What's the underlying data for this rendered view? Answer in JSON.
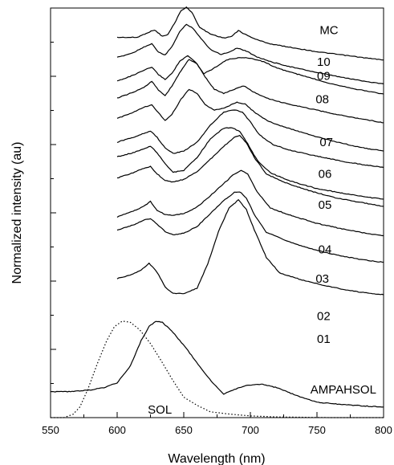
{
  "chart_data": {
    "type": "line",
    "title": "",
    "xlabel": "Wavelength (nm)",
    "ylabel": "Normalized intensity (au)",
    "xlim": [
      550,
      800
    ],
    "ylim": [
      0,
      12
    ],
    "xticks": [
      550,
      600,
      650,
      700,
      750,
      800
    ],
    "grid": false,
    "legend": "none",
    "series": [
      {
        "name": "MC",
        "style": "solid",
        "points": [
          [
            600,
            11.14
          ],
          [
            615,
            11.14
          ],
          [
            623,
            11.28
          ],
          [
            628,
            11.36
          ],
          [
            634,
            11.17
          ],
          [
            638,
            11.22
          ],
          [
            643,
            11.55
          ],
          [
            648,
            11.93
          ],
          [
            652,
            12.02
          ],
          [
            656,
            11.88
          ],
          [
            662,
            11.43
          ],
          [
            670,
            11.24
          ],
          [
            680,
            11.12
          ],
          [
            686,
            11.17
          ],
          [
            691,
            11.34
          ],
          [
            697,
            11.21
          ],
          [
            705,
            11.07
          ],
          [
            715,
            10.95
          ],
          [
            730,
            10.85
          ],
          [
            750,
            10.72
          ],
          [
            770,
            10.62
          ],
          [
            790,
            10.52
          ],
          [
            800,
            10.48
          ]
        ]
      },
      {
        "name": "10",
        "style": "solid",
        "points": [
          [
            600,
            10.55
          ],
          [
            612,
            10.69
          ],
          [
            620,
            10.86
          ],
          [
            626,
            10.95
          ],
          [
            631,
            10.71
          ],
          [
            636,
            10.62
          ],
          [
            641,
            10.86
          ],
          [
            647,
            11.31
          ],
          [
            652,
            11.52
          ],
          [
            657,
            11.41
          ],
          [
            663,
            11.1
          ],
          [
            670,
            10.79
          ],
          [
            678,
            10.64
          ],
          [
            684,
            10.71
          ],
          [
            690,
            10.83
          ],
          [
            697,
            10.74
          ],
          [
            705,
            10.57
          ],
          [
            715,
            10.43
          ],
          [
            730,
            10.28
          ],
          [
            750,
            10.11
          ],
          [
            770,
            9.96
          ],
          [
            790,
            9.83
          ],
          [
            800,
            9.78
          ]
        ]
      },
      {
        "name": "09",
        "style": "solid",
        "points": [
          [
            600,
            9.86
          ],
          [
            612,
            10.03
          ],
          [
            620,
            10.17
          ],
          [
            626,
            10.27
          ],
          [
            631,
            10.05
          ],
          [
            636,
            9.91
          ],
          [
            641,
            10.08
          ],
          [
            647,
            10.44
          ],
          [
            653,
            10.6
          ],
          [
            659,
            10.41
          ],
          [
            665,
            10.08
          ],
          [
            672,
            10.22
          ],
          [
            682,
            10.48
          ],
          [
            692,
            10.55
          ],
          [
            700,
            10.53
          ],
          [
            710,
            10.43
          ],
          [
            720,
            10.24
          ],
          [
            740,
            10.01
          ],
          [
            760,
            9.79
          ],
          [
            780,
            9.62
          ],
          [
            800,
            9.48
          ]
        ]
      },
      {
        "name": "08",
        "style": "solid",
        "points": [
          [
            600,
            9.36
          ],
          [
            612,
            9.53
          ],
          [
            620,
            9.67
          ],
          [
            626,
            9.86
          ],
          [
            631,
            9.6
          ],
          [
            636,
            9.43
          ],
          [
            641,
            9.71
          ],
          [
            648,
            10.17
          ],
          [
            654,
            10.5
          ],
          [
            660,
            10.36
          ],
          [
            666,
            9.98
          ],
          [
            673,
            9.62
          ],
          [
            680,
            9.5
          ],
          [
            688,
            9.62
          ],
          [
            695,
            9.72
          ],
          [
            702,
            9.55
          ],
          [
            712,
            9.36
          ],
          [
            725,
            9.22
          ],
          [
            745,
            9.05
          ],
          [
            765,
            8.88
          ],
          [
            785,
            8.74
          ],
          [
            800,
            8.64
          ]
        ]
      },
      {
        "name": "07",
        "style": "solid",
        "points": [
          [
            600,
            8.76
          ],
          [
            612,
            8.95
          ],
          [
            620,
            9.09
          ],
          [
            626,
            9.17
          ],
          [
            631,
            8.93
          ],
          [
            636,
            8.71
          ],
          [
            641,
            8.88
          ],
          [
            648,
            9.33
          ],
          [
            654,
            9.62
          ],
          [
            660,
            9.5
          ],
          [
            666,
            9.17
          ],
          [
            673,
            9
          ],
          [
            682,
            9.1
          ],
          [
            690,
            9.24
          ],
          [
            696,
            9.19
          ],
          [
            703,
            8.95
          ],
          [
            713,
            8.69
          ],
          [
            725,
            8.52
          ],
          [
            745,
            8.28
          ],
          [
            765,
            8.07
          ],
          [
            785,
            7.9
          ],
          [
            800,
            7.81
          ]
        ]
      },
      {
        "name": "06",
        "style": "solid",
        "points": [
          [
            600,
            8.07
          ],
          [
            612,
            8.21
          ],
          [
            620,
            8.33
          ],
          [
            625,
            8.4
          ],
          [
            630,
            8.21
          ],
          [
            636,
            7.9
          ],
          [
            642,
            7.74
          ],
          [
            650,
            7.81
          ],
          [
            660,
            8.07
          ],
          [
            670,
            8.57
          ],
          [
            680,
            8.95
          ],
          [
            688,
            9.02
          ],
          [
            694,
            8.95
          ],
          [
            700,
            8.66
          ],
          [
            707,
            8.28
          ],
          [
            717,
            8
          ],
          [
            730,
            7.83
          ],
          [
            750,
            7.66
          ],
          [
            770,
            7.5
          ],
          [
            790,
            7.38
          ],
          [
            800,
            7.33
          ]
        ]
      },
      {
        "name": "05",
        "style": "solid",
        "points": [
          [
            600,
            7.64
          ],
          [
            612,
            7.76
          ],
          [
            620,
            7.88
          ],
          [
            625,
            7.95
          ],
          [
            630,
            7.76
          ],
          [
            636,
            7.43
          ],
          [
            642,
            7.19
          ],
          [
            650,
            7.24
          ],
          [
            660,
            7.62
          ],
          [
            670,
            8.17
          ],
          [
            680,
            8.48
          ],
          [
            686,
            8.5
          ],
          [
            692,
            8.38
          ],
          [
            698,
            8.02
          ],
          [
            705,
            7.55
          ],
          [
            715,
            7.17
          ],
          [
            730,
            6.93
          ],
          [
            750,
            6.71
          ],
          [
            770,
            6.57
          ],
          [
            790,
            6.45
          ],
          [
            800,
            6.4
          ]
        ]
      },
      {
        "name": "04",
        "style": "solid",
        "points": [
          [
            600,
            7.02
          ],
          [
            612,
            7.17
          ],
          [
            620,
            7.31
          ],
          [
            625,
            7.36
          ],
          [
            630,
            7.14
          ],
          [
            636,
            6.95
          ],
          [
            642,
            6.9
          ],
          [
            650,
            6.98
          ],
          [
            660,
            7.21
          ],
          [
            670,
            7.57
          ],
          [
            680,
            7.95
          ],
          [
            688,
            8.21
          ],
          [
            692,
            8.26
          ],
          [
            697,
            8.05
          ],
          [
            703,
            7.62
          ],
          [
            712,
            7.14
          ],
          [
            725,
            6.9
          ],
          [
            745,
            6.64
          ],
          [
            765,
            6.43
          ],
          [
            785,
            6.29
          ],
          [
            800,
            6.19
          ]
        ]
      },
      {
        "name": "03",
        "style": "solid",
        "points": [
          [
            600,
            5.88
          ],
          [
            612,
            6.05
          ],
          [
            620,
            6.19
          ],
          [
            625,
            6.33
          ],
          [
            630,
            6.07
          ],
          [
            636,
            5.95
          ],
          [
            642,
            5.93
          ],
          [
            650,
            5.98
          ],
          [
            660,
            6.17
          ],
          [
            670,
            6.5
          ],
          [
            680,
            6.86
          ],
          [
            688,
            7.14
          ],
          [
            693,
            7.24
          ],
          [
            698,
            7.14
          ],
          [
            705,
            6.62
          ],
          [
            715,
            6.14
          ],
          [
            730,
            5.93
          ],
          [
            750,
            5.69
          ],
          [
            770,
            5.52
          ],
          [
            790,
            5.38
          ],
          [
            800,
            5.33
          ]
        ]
      },
      {
        "name": "02",
        "style": "solid",
        "points": [
          [
            600,
            5.5
          ],
          [
            612,
            5.64
          ],
          [
            620,
            5.79
          ],
          [
            625,
            5.83
          ],
          [
            630,
            5.67
          ],
          [
            636,
            5.45
          ],
          [
            642,
            5.36
          ],
          [
            650,
            5.4
          ],
          [
            660,
            5.6
          ],
          [
            670,
            5.98
          ],
          [
            680,
            6.36
          ],
          [
            688,
            6.6
          ],
          [
            692,
            6.62
          ],
          [
            697,
            6.43
          ],
          [
            703,
            5.95
          ],
          [
            712,
            5.43
          ],
          [
            725,
            5.21
          ],
          [
            745,
            4.95
          ],
          [
            765,
            4.76
          ],
          [
            785,
            4.62
          ],
          [
            800,
            4.55
          ]
        ]
      },
      {
        "name": "01",
        "style": "solid",
        "points": [
          [
            600,
            4.07
          ],
          [
            612,
            4.21
          ],
          [
            618,
            4.33
          ],
          [
            624,
            4.52
          ],
          [
            630,
            4.26
          ],
          [
            636,
            3.83
          ],
          [
            642,
            3.64
          ],
          [
            650,
            3.64
          ],
          [
            660,
            3.79
          ],
          [
            668,
            4.5
          ],
          [
            676,
            5.45
          ],
          [
            684,
            6.14
          ],
          [
            691,
            6.38
          ],
          [
            697,
            6.1
          ],
          [
            703,
            5.5
          ],
          [
            712,
            4.69
          ],
          [
            722,
            4.24
          ],
          [
            740,
            4.02
          ],
          [
            760,
            3.83
          ],
          [
            780,
            3.69
          ],
          [
            800,
            3.6
          ]
        ]
      },
      {
        "name": "AMPAHSOL",
        "style": "solid",
        "points": [
          [
            550,
            0.76
          ],
          [
            565,
            0.76
          ],
          [
            580,
            0.81
          ],
          [
            590,
            0.88
          ],
          [
            600,
            1.02
          ],
          [
            610,
            1.52
          ],
          [
            618,
            2.26
          ],
          [
            624,
            2.67
          ],
          [
            629,
            2.83
          ],
          [
            634,
            2.79
          ],
          [
            642,
            2.5
          ],
          [
            652,
            2.02
          ],
          [
            662,
            1.5
          ],
          [
            672,
            1
          ],
          [
            680,
            0.69
          ],
          [
            688,
            0.83
          ],
          [
            698,
            0.95
          ],
          [
            708,
            0.98
          ],
          [
            720,
            0.88
          ],
          [
            735,
            0.64
          ],
          [
            750,
            0.45
          ],
          [
            770,
            0.38
          ],
          [
            790,
            0.33
          ],
          [
            800,
            0.31
          ]
        ]
      },
      {
        "name": "SOL",
        "style": "dotted",
        "points": [
          [
            550,
            0
          ],
          [
            560,
            0
          ],
          [
            567,
            0.1
          ],
          [
            572,
            0.31
          ],
          [
            578,
            0.83
          ],
          [
            585,
            1.57
          ],
          [
            592,
            2.24
          ],
          [
            598,
            2.67
          ],
          [
            604,
            2.83
          ],
          [
            610,
            2.79
          ],
          [
            617,
            2.57
          ],
          [
            625,
            2.17
          ],
          [
            633,
            1.67
          ],
          [
            641,
            1.14
          ],
          [
            650,
            0.6
          ],
          [
            660,
            0.36
          ],
          [
            670,
            0.17
          ],
          [
            685,
            0.1
          ],
          [
            700,
            0.05
          ],
          [
            720,
            0.02
          ],
          [
            760,
            0
          ],
          [
            800,
            0
          ]
        ]
      }
    ],
    "labels": [
      {
        "text": "MC",
        "x": 752,
        "y": 11.24
      },
      {
        "text": "10",
        "x": 750,
        "y": 10.31
      },
      {
        "text": "09",
        "x": 750,
        "y": 9.9
      },
      {
        "text": "08",
        "x": 749,
        "y": 9.21
      },
      {
        "text": "07",
        "x": 752,
        "y": 7.95
      },
      {
        "text": "06",
        "x": 751,
        "y": 7.02
      },
      {
        "text": "05",
        "x": 751,
        "y": 6.12
      },
      {
        "text": "04",
        "x": 751,
        "y": 4.81
      },
      {
        "text": "03",
        "x": 749,
        "y": 3.95
      },
      {
        "text": "02",
        "x": 750,
        "y": 2.86
      },
      {
        "text": "01",
        "x": 750,
        "y": 2.19
      },
      {
        "text": "AMPAHSOL",
        "x": 745,
        "y": 0.71
      },
      {
        "text": "SOL",
        "x": 623,
        "y": 0.12
      }
    ]
  }
}
